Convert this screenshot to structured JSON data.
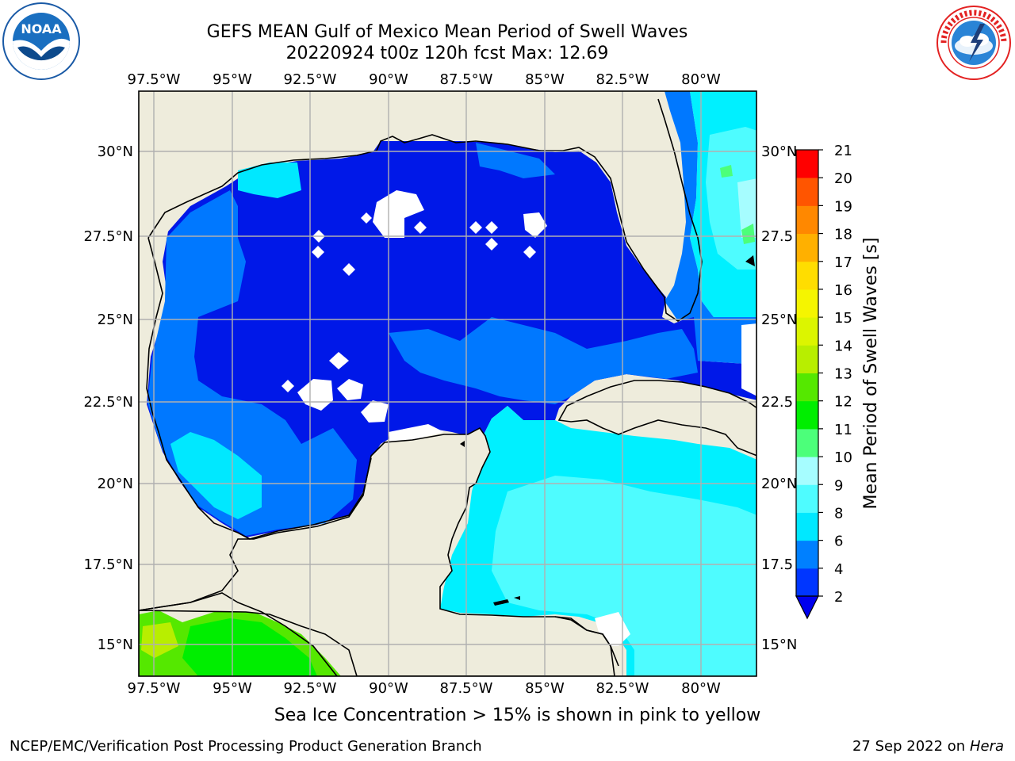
{
  "header": {
    "title_line1": "GEFS MEAN Gulf of Mexico Mean Period of Swell Waves",
    "title_line2": "20220924 t00z 120h fcst   Max: 12.69"
  },
  "logos": {
    "left": {
      "text": "NOAA",
      "ring_text": "NATIONAL OCEANIC AND ATMOSPHERIC ADMINISTRATION · U.S. DEPARTMENT OF COMMERCE",
      "color": "#1a5aa6"
    },
    "right": {
      "ring_text": "NATIONAL WEATHER SERVICE",
      "color": "#e32222"
    }
  },
  "map": {
    "lon_ticks": [
      "97.5°W",
      "95°W",
      "92.5°W",
      "90°W",
      "87.5°W",
      "85°W",
      "82.5°W",
      "80°W"
    ],
    "lat_ticks_left": [
      "30°N",
      "27.5°N",
      "25°N",
      "22.5°N",
      "20°N",
      "17.5°N",
      "15°N"
    ],
    "lat_ticks_right": [
      "30°N",
      "27.5",
      "25°N",
      "22.5",
      "20°N",
      "17.5",
      "15°N"
    ],
    "land_color": "#eeecdc",
    "grid_color": "#b0b0b0"
  },
  "colorbar": {
    "label": "Mean Period of Swell Waves [s]",
    "ticks": [
      "2",
      "4",
      "6",
      "8",
      "9",
      "10",
      "11",
      "12",
      "13",
      "14",
      "15",
      "16",
      "17",
      "18",
      "19",
      "20",
      "21"
    ],
    "colors": [
      "#0036ff",
      "#0080ff",
      "#00e8ff",
      "#4efcff",
      "#a6fdff",
      "#4cff7a",
      "#00ee00",
      "#55e800",
      "#b8ee00",
      "#dcf500",
      "#f5f500",
      "#ffdd00",
      "#ffb000",
      "#ff8800",
      "#ff5500",
      "#ff2200",
      "#ff0000"
    ],
    "extend_color": "#0000ee"
  },
  "note": "Sea Ice Concentration > 15% is shown in pink to yellow",
  "footer": {
    "left": "NCEP/EMC/Verification Post Processing Product Generation Branch",
    "right_date": "27 Sep 2022 on",
    "right_host": "Hera"
  }
}
